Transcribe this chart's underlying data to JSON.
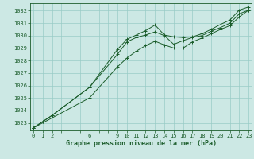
{
  "title": "Graphe pression niveau de la mer (hPa)",
  "bg_color": "#cce8e4",
  "grid_color": "#99ccc6",
  "line_color": "#1a5c2a",
  "spine_color": "#1a5c2a",
  "xlim": [
    -0.3,
    23.3
  ],
  "ylim": [
    1022.4,
    1032.6
  ],
  "yticks": [
    1023,
    1024,
    1025,
    1026,
    1027,
    1028,
    1029,
    1030,
    1031,
    1032
  ],
  "xtick_labels": [
    "0",
    "1",
    "2",
    "",
    "",
    "",
    "6",
    "",
    "",
    "9",
    "10",
    "11",
    "12",
    "13",
    "14",
    "15",
    "16",
    "17",
    "18",
    "19",
    "20",
    "21",
    "22",
    "23"
  ],
  "xtick_positions": [
    0,
    1,
    2,
    3,
    4,
    5,
    6,
    7,
    8,
    9,
    10,
    11,
    12,
    13,
    14,
    15,
    16,
    17,
    18,
    19,
    20,
    21,
    22,
    23
  ],
  "series": [
    {
      "x": [
        0,
        1,
        2,
        6,
        9,
        10,
        11,
        12,
        13,
        14,
        15,
        16,
        17,
        18,
        19,
        20,
        21,
        22,
        23
      ],
      "y": [
        1022.6,
        1023.1,
        1023.6,
        1025.85,
        1028.9,
        1029.7,
        1030.05,
        1030.4,
        1030.85,
        1030.05,
        1029.9,
        1029.85,
        1029.9,
        1030.15,
        1030.5,
        1030.9,
        1031.25,
        1032.05,
        1032.3
      ]
    },
    {
      "x": [
        0,
        1,
        2,
        6,
        9,
        10,
        11,
        12,
        13,
        14,
        15,
        16,
        17,
        18,
        19,
        20,
        21,
        22,
        23
      ],
      "y": [
        1022.6,
        1023.1,
        1023.6,
        1025.85,
        1028.5,
        1029.5,
        1029.85,
        1030.05,
        1030.3,
        1030.0,
        1029.3,
        1029.6,
        1029.85,
        1030.0,
        1030.35,
        1030.65,
        1031.0,
        1031.75,
        1032.05
      ]
    },
    {
      "x": [
        0,
        6,
        9,
        10,
        11,
        12,
        13,
        14,
        15,
        16,
        17,
        18,
        19,
        20,
        21,
        22,
        23
      ],
      "y": [
        1022.6,
        1025.0,
        1027.5,
        1028.2,
        1028.75,
        1029.2,
        1029.55,
        1029.25,
        1029.0,
        1029.0,
        1029.5,
        1029.8,
        1030.15,
        1030.5,
        1030.8,
        1031.5,
        1032.05
      ]
    }
  ]
}
